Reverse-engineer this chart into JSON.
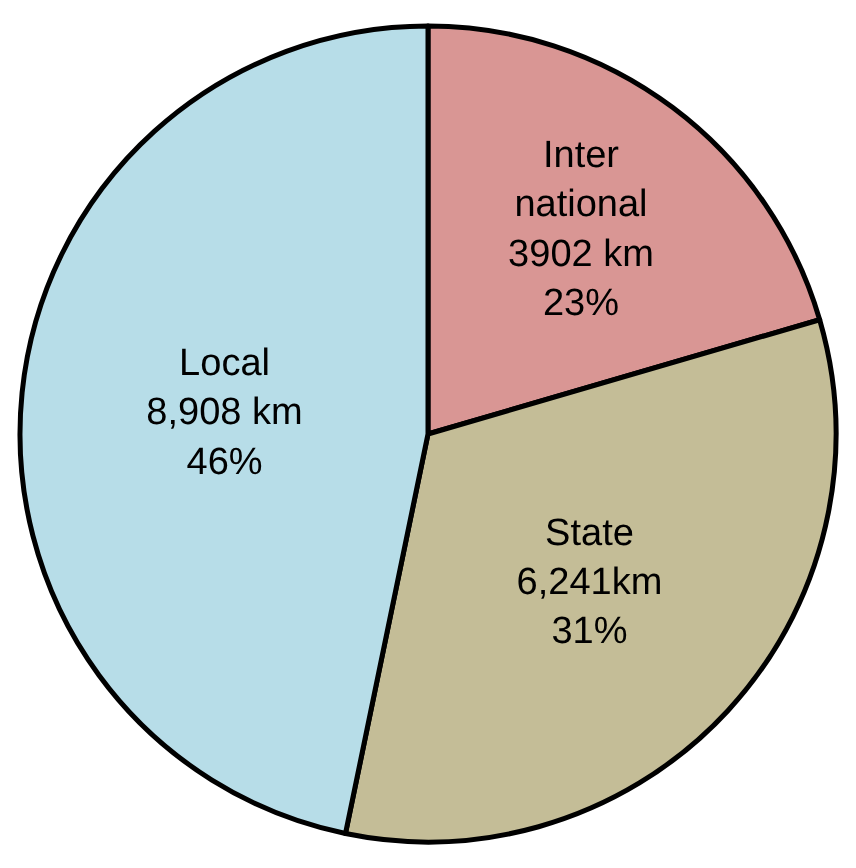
{
  "chart_data": {
    "type": "pie",
    "categories": [
      "Inter national",
      "State",
      "Local"
    ],
    "values": [
      3902,
      6241,
      8908
    ],
    "colors": [
      "#d99694",
      "#c4bd97",
      "#b7dde8"
    ],
    "value_labels": [
      "3902 km\n23%",
      "6,241km\n31%",
      "8,908 km\n46%"
    ],
    "legend": false
  }
}
